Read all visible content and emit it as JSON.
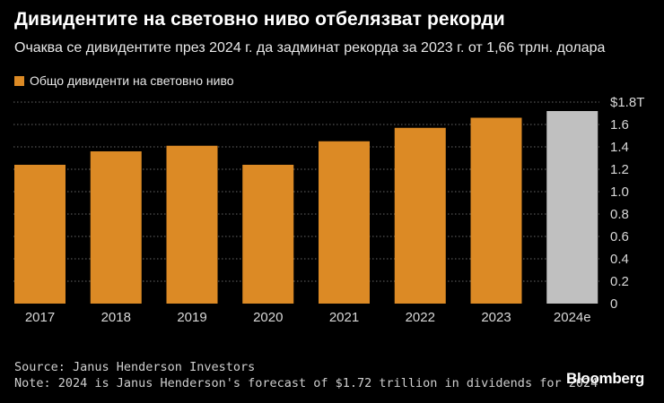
{
  "chart_data": {
    "type": "bar",
    "title": "Дивидентите на световно ниво отбелязват рекорди",
    "subtitle": "Очаква се дивидентите през 2024 г. да задминат рекорда за 2023 г. от 1,66 трлн. долара",
    "categories": [
      "2017",
      "2018",
      "2019",
      "2020",
      "2021",
      "2022",
      "2023",
      "2024e"
    ],
    "series": [
      {
        "name": "Общо дивиденти на световно ниво",
        "values": [
          1.24,
          1.36,
          1.41,
          1.24,
          1.45,
          1.57,
          1.66,
          1.72
        ]
      }
    ],
    "estimate_category": "2024e",
    "ylim": [
      0,
      1.8
    ],
    "yticks": [
      0,
      0.2,
      0.4,
      0.6,
      0.8,
      1.0,
      1.2,
      1.4,
      1.6,
      1.8
    ],
    "ytick_labels": [
      "0",
      "0.2",
      "0.4",
      "0.6",
      "0.8",
      "1.0",
      "1.2",
      "1.4",
      "1.6",
      "$1.8T"
    ],
    "y_axis_side": "right",
    "grid": true,
    "legend_position": "top-left",
    "colors": {
      "bar": "#dc8a25",
      "estimate_bar": "#c0c0c0",
      "background": "#000000",
      "grid": "#666666"
    }
  },
  "footer": {
    "source": "Source: Janus Henderson Investors",
    "note": "Note: 2024 is Janus Henderson's forecast of $1.72 trillion in dividends for 2024",
    "brand": "Bloomberg"
  }
}
